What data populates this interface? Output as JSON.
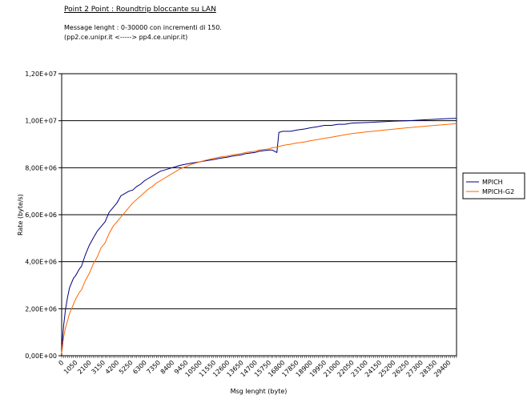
{
  "header": {
    "title": "Point 2 Point  :  Roundtrip bloccante su LAN",
    "line1": "Message lenght :  0-30000 con incrementi di 150.",
    "line2": "(pp2.ce.unipr.it   <----->  pp4.ce.unipr.it)"
  },
  "chart_data": {
    "type": "line",
    "xlabel": "Msg lenght (byte)",
    "ylabel": "Rate (byte/s)",
    "ylim": [
      0,
      12000000
    ],
    "yticks": [
      "0,00E+00",
      "2,00E+06",
      "4,00E+06",
      "6,00E+06",
      "8,00E+06",
      "1,00E+07",
      "1,20E+07"
    ],
    "xticks": [
      "0",
      "1050",
      "2100",
      "3150",
      "4200",
      "5250",
      "6300",
      "7350",
      "8400",
      "9450",
      "10500",
      "11550",
      "12600",
      "13650",
      "14700",
      "15750",
      "16800",
      "17850",
      "18900",
      "19950",
      "21000",
      "22050",
      "23100",
      "24150",
      "25200",
      "26250",
      "27300",
      "28350",
      "29400"
    ],
    "grid": "horizontal",
    "legend_position": "right",
    "series": [
      {
        "name": "MPICH",
        "color": "#000080",
        "x": [
          0,
          150,
          300,
          450,
          600,
          900,
          1050,
          1350,
          1500,
          1800,
          2100,
          2400,
          2700,
          3000,
          3300,
          3600,
          3900,
          4200,
          4500,
          4800,
          5100,
          5400,
          5700,
          6000,
          6300,
          6600,
          6900,
          7200,
          7500,
          7800,
          8100,
          8400,
          8700,
          9000,
          9450,
          9900,
          10500,
          11000,
          11550,
          12000,
          12600,
          13000,
          13650,
          14000,
          14700,
          15000,
          15750,
          16000,
          16350,
          16500,
          16800,
          17400,
          17850,
          18500,
          18900,
          19500,
          19950,
          20500,
          21000,
          21500,
          22050,
          23100,
          24150,
          25200,
          26250,
          27300,
          28350,
          29400,
          30000
        ],
        "y": [
          300000,
          1300000,
          2000000,
          2500000,
          2900000,
          3300000,
          3400000,
          3700000,
          3800000,
          4300000,
          4700000,
          5000000,
          5300000,
          5500000,
          5700000,
          6100000,
          6300000,
          6500000,
          6800000,
          6900000,
          7000000,
          7050000,
          7200000,
          7300000,
          7450000,
          7550000,
          7650000,
          7750000,
          7850000,
          7900000,
          7950000,
          8000000,
          8050000,
          8100000,
          8150000,
          8200000,
          8250000,
          8300000,
          8350000,
          8400000,
          8450000,
          8500000,
          8550000,
          8600000,
          8650000,
          8700000,
          8750000,
          8750000,
          8650000,
          9500000,
          9550000,
          9550000,
          9600000,
          9650000,
          9700000,
          9750000,
          9800000,
          9800000,
          9850000,
          9850000,
          9900000,
          9920000,
          9950000,
          9980000,
          10000000,
          10030000,
          10060000,
          10090000,
          10100000
        ]
      },
      {
        "name": "MPICH-G2",
        "color": "#ff6600",
        "x": [
          0,
          150,
          300,
          450,
          600,
          900,
          1050,
          1350,
          1500,
          1800,
          2100,
          2400,
          2700,
          3000,
          3300,
          3600,
          3900,
          4200,
          4500,
          4800,
          5100,
          5400,
          5700,
          6000,
          6300,
          6600,
          6900,
          7200,
          7500,
          7800,
          8100,
          8400,
          8700,
          9000,
          9450,
          9900,
          10500,
          11000,
          11550,
          12000,
          12600,
          13000,
          13650,
          14000,
          14700,
          15000,
          15750,
          16000,
          16350,
          16500,
          16800,
          17400,
          17850,
          18500,
          18900,
          19500,
          19950,
          20500,
          21000,
          21500,
          22050,
          23100,
          24150,
          25200,
          26250,
          27300,
          28350,
          29400,
          30000
        ],
        "y": [
          100000,
          800000,
          1200000,
          1500000,
          1800000,
          2200000,
          2400000,
          2700000,
          2800000,
          3200000,
          3500000,
          3900000,
          4200000,
          4600000,
          4800000,
          5200000,
          5500000,
          5700000,
          5900000,
          6100000,
          6300000,
          6500000,
          6650000,
          6800000,
          6950000,
          7100000,
          7200000,
          7350000,
          7450000,
          7550000,
          7650000,
          7750000,
          7850000,
          7950000,
          8050000,
          8150000,
          8250000,
          8330000,
          8400000,
          8450000,
          8500000,
          8550000,
          8600000,
          8650000,
          8700000,
          8750000,
          8800000,
          8850000,
          8870000,
          8900000,
          8950000,
          9000000,
          9050000,
          9100000,
          9150000,
          9200000,
          9250000,
          9300000,
          9350000,
          9400000,
          9450000,
          9520000,
          9580000,
          9640000,
          9700000,
          9750000,
          9800000,
          9850000,
          9880000
        ]
      }
    ]
  }
}
